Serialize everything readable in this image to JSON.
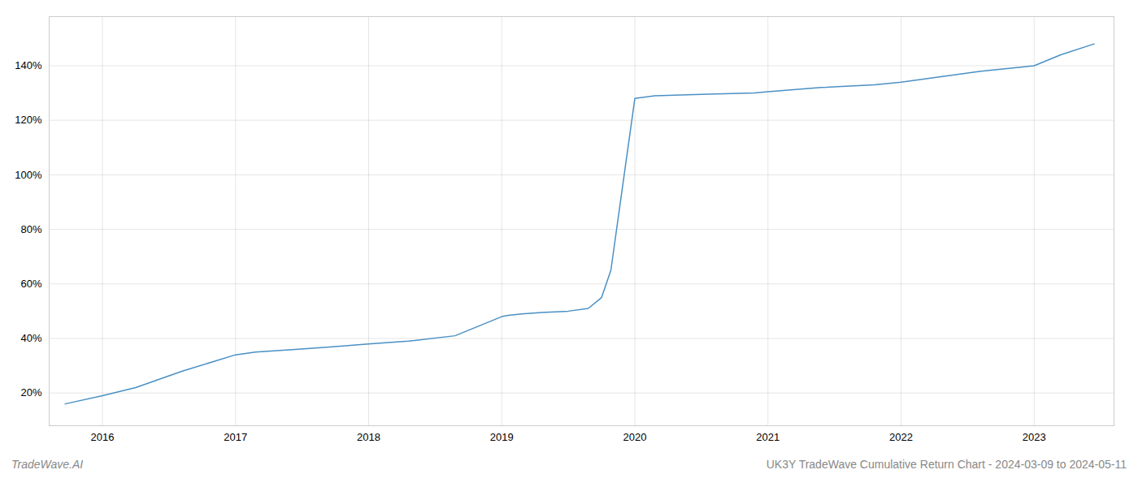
{
  "chart_data": {
    "type": "line",
    "title": "UK3Y TradeWave Cumulative Return Chart - 2024-03-09 to 2024-05-11",
    "annotations": [
      "TradeWave.AI"
    ],
    "x": [
      2015.72,
      2016.0,
      2016.25,
      2016.6,
      2017.0,
      2017.15,
      2017.45,
      2017.75,
      2018.0,
      2018.3,
      2018.65,
      2019.0,
      2019.05,
      2019.15,
      2019.3,
      2019.5,
      2019.65,
      2019.75,
      2019.82,
      2019.92,
      2020.0,
      2020.15,
      2020.5,
      2020.9,
      2021.0,
      2021.4,
      2021.8,
      2022.0,
      2022.3,
      2022.6,
      2022.9,
      2023.0,
      2023.2,
      2023.45
    ],
    "values": [
      16,
      19,
      22,
      28,
      34,
      35,
      36,
      37,
      38,
      39,
      41,
      48,
      48.5,
      49,
      49.5,
      50,
      51,
      55,
      65,
      100,
      128,
      129,
      129.5,
      130,
      130.5,
      132,
      133,
      134,
      136,
      138,
      139.5,
      140,
      144,
      148
    ],
    "color": "#4a90c4",
    "xlim": [
      2015.6,
      2023.6
    ],
    "ylim": [
      8,
      158
    ],
    "xticks": [
      2016,
      2017,
      2018,
      2019,
      2020,
      2021,
      2022,
      2023
    ],
    "yticks": [
      {
        "value": 20,
        "label": "20%"
      },
      {
        "value": 40,
        "label": "40%"
      },
      {
        "value": 60,
        "label": "60%"
      },
      {
        "value": 80,
        "label": "80%"
      },
      {
        "value": 100,
        "label": "100%"
      },
      {
        "value": 120,
        "label": "120%"
      },
      {
        "value": 140,
        "label": "140%"
      }
    ],
    "grid": true
  }
}
